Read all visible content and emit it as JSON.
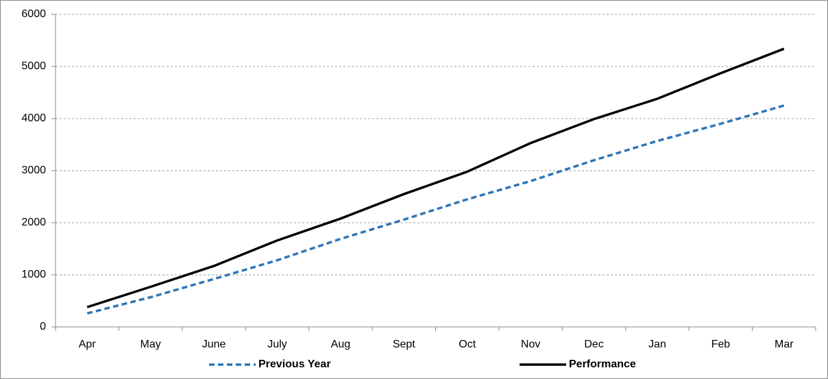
{
  "chart_data": {
    "type": "line",
    "categories": [
      "Apr",
      "May",
      "June",
      "July",
      "Aug",
      "Sept",
      "Oct",
      "Nov",
      "Dec",
      "Jan",
      "Feb",
      "Mar"
    ],
    "series": [
      {
        "name": "Previous Year",
        "color": "#2e75b6",
        "dashed": true,
        "values": [
          260,
          570,
          920,
          1280,
          1690,
          2060,
          2450,
          2800,
          3200,
          3570,
          3900,
          4250
        ]
      },
      {
        "name": "Performance",
        "color": "#000000",
        "dashed": false,
        "values": [
          380,
          770,
          1170,
          1660,
          2080,
          2550,
          2980,
          3530,
          3990,
          4380,
          4870,
          5340
        ]
      }
    ],
    "ylim": [
      0,
      6000
    ],
    "yticks": [
      0,
      1000,
      2000,
      3000,
      4000,
      5000,
      6000
    ],
    "grid": true,
    "legend": "bottom"
  }
}
